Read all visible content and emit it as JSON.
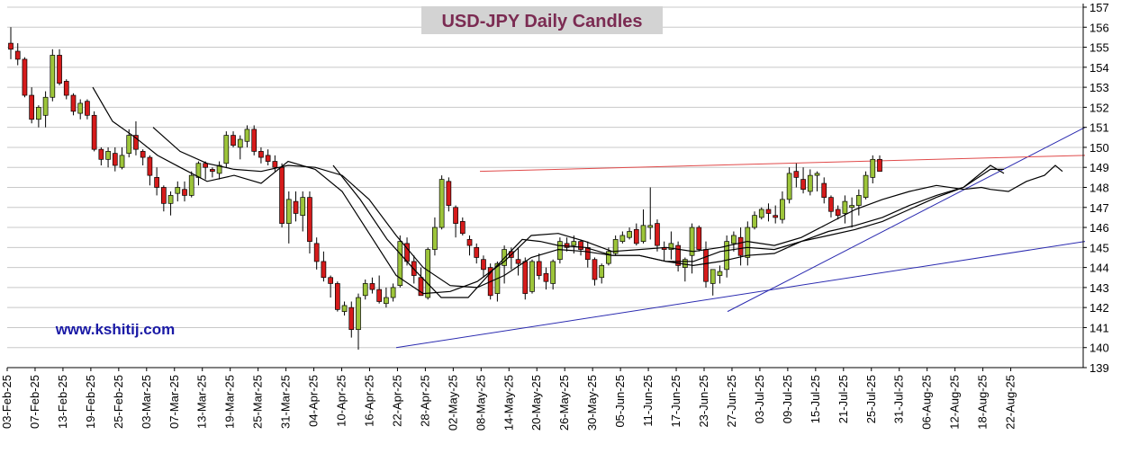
{
  "chart_data": {
    "type": "candlestick",
    "title": "USD-JPY Daily Candles",
    "watermark": "www.kshitij.com",
    "ylim": [
      139,
      157
    ],
    "y_ticks": [
      139,
      140,
      141,
      142,
      143,
      144,
      145,
      146,
      147,
      148,
      149,
      150,
      151,
      152,
      153,
      154,
      155,
      156,
      157
    ],
    "x_tick_labels": [
      "03-Feb-25",
      "07-Feb-25",
      "13-Feb-25",
      "19-Feb-25",
      "25-Feb-25",
      "03-Mar-25",
      "07-Mar-25",
      "13-Mar-25",
      "19-Mar-25",
      "25-Mar-25",
      "31-Mar-25",
      "04-Apr-25",
      "10-Apr-25",
      "16-Apr-25",
      "22-Apr-25",
      "28-Apr-25",
      "02-May-25",
      "08-May-25",
      "14-May-25",
      "20-May-25",
      "26-May-25",
      "30-May-25",
      "05-Jun-25",
      "11-Jun-25",
      "17-Jun-25",
      "23-Jun-25",
      "27-Jun-25",
      "03-Jul-25",
      "09-Jul-25",
      "15-Jul-25",
      "21-Jul-25",
      "25-Jul-25",
      "31-Jul-25",
      "06-Aug-25",
      "12-Aug-25",
      "18-Aug-25",
      "22-Aug-25"
    ],
    "colors": {
      "up": "#9dc53a",
      "down": "#d61b1b",
      "outline": "#000000",
      "ma": "#000000",
      "trend_blue": "#2b2bb0",
      "trend_red": "#e04a4a",
      "grid": "#c8c8c8",
      "title_bg": "#d3d3d3"
    },
    "candles_ohlc": [
      [
        155.2,
        156.0,
        154.4,
        154.9
      ],
      [
        154.8,
        155.2,
        154.1,
        154.4
      ],
      [
        154.4,
        154.5,
        152.5,
        152.6
      ],
      [
        152.6,
        153.0,
        151.2,
        151.4
      ],
      [
        151.4,
        152.1,
        151.0,
        152.0
      ],
      [
        151.6,
        152.8,
        151.0,
        152.5
      ],
      [
        152.5,
        154.9,
        152.3,
        154.6
      ],
      [
        154.6,
        154.9,
        153.1,
        153.2
      ],
      [
        153.3,
        153.4,
        152.4,
        152.6
      ],
      [
        152.6,
        152.7,
        151.6,
        151.8
      ],
      [
        151.7,
        152.4,
        151.4,
        152.2
      ],
      [
        152.3,
        152.4,
        151.4,
        151.6
      ],
      [
        151.6,
        151.8,
        149.8,
        149.9
      ],
      [
        149.9,
        150.0,
        149.1,
        149.4
      ],
      [
        149.4,
        150.0,
        149.0,
        149.8
      ],
      [
        149.7,
        150.0,
        148.8,
        149.1
      ],
      [
        149.0,
        150.0,
        148.9,
        149.6
      ],
      [
        149.7,
        150.9,
        149.5,
        150.6
      ],
      [
        150.6,
        151.3,
        149.6,
        149.9
      ],
      [
        149.8,
        149.9,
        149.1,
        149.5
      ],
      [
        149.5,
        149.6,
        148.1,
        148.6
      ],
      [
        148.5,
        149.0,
        147.6,
        148.0
      ],
      [
        148.0,
        148.1,
        146.8,
        147.2
      ],
      [
        147.2,
        147.8,
        146.6,
        147.6
      ],
      [
        147.7,
        148.3,
        147.3,
        148.0
      ],
      [
        147.9,
        148.3,
        147.3,
        147.6
      ],
      [
        147.6,
        148.8,
        147.5,
        148.6
      ],
      [
        148.5,
        149.3,
        148.1,
        149.2
      ],
      [
        149.2,
        149.3,
        148.4,
        149.0
      ],
      [
        148.9,
        149.0,
        148.5,
        148.8
      ],
      [
        148.7,
        149.3,
        148.4,
        149.1
      ],
      [
        149.2,
        150.8,
        149.0,
        150.6
      ],
      [
        150.6,
        150.8,
        150.0,
        150.1
      ],
      [
        150.0,
        150.6,
        149.4,
        150.4
      ],
      [
        150.3,
        151.1,
        150.0,
        150.9
      ],
      [
        150.9,
        151.1,
        149.6,
        149.8
      ],
      [
        149.8,
        150.0,
        149.2,
        149.5
      ],
      [
        149.6,
        149.9,
        149.1,
        149.3
      ],
      [
        149.3,
        149.6,
        148.8,
        149.0
      ],
      [
        149.0,
        149.2,
        146.0,
        146.2
      ],
      [
        146.2,
        147.8,
        145.2,
        147.4
      ],
      [
        147.3,
        147.8,
        146.3,
        146.7
      ],
      [
        146.6,
        147.8,
        145.8,
        147.5
      ],
      [
        147.5,
        147.8,
        144.7,
        145.3
      ],
      [
        145.2,
        145.5,
        143.9,
        144.3
      ],
      [
        144.3,
        144.8,
        143.3,
        143.5
      ],
      [
        143.5,
        143.6,
        142.5,
        143.2
      ],
      [
        143.2,
        143.3,
        141.8,
        141.9
      ],
      [
        141.8,
        142.3,
        141.6,
        142.1
      ],
      [
        142.0,
        142.3,
        140.5,
        140.9
      ],
      [
        140.9,
        142.7,
        139.9,
        142.5
      ],
      [
        142.6,
        143.4,
        142.4,
        143.2
      ],
      [
        143.2,
        143.5,
        142.7,
        142.9
      ],
      [
        142.9,
        143.6,
        142.2,
        142.3
      ],
      [
        142.2,
        143.0,
        142.0,
        142.5
      ],
      [
        142.5,
        143.2,
        142.3,
        143.0
      ],
      [
        143.1,
        145.6,
        143.0,
        145.3
      ],
      [
        145.2,
        145.5,
        144.1,
        144.3
      ],
      [
        144.3,
        144.6,
        143.2,
        143.6
      ],
      [
        143.5,
        144.0,
        142.8,
        142.6
      ],
      [
        142.5,
        145.0,
        142.4,
        144.9
      ],
      [
        144.9,
        146.5,
        144.6,
        146.0
      ],
      [
        146.0,
        148.6,
        145.9,
        148.4
      ],
      [
        148.3,
        148.5,
        146.8,
        147.1
      ],
      [
        147.0,
        147.1,
        145.5,
        146.2
      ],
      [
        146.3,
        146.5,
        145.6,
        145.7
      ],
      [
        145.4,
        145.6,
        144.6,
        145.1
      ],
      [
        145.0,
        145.2,
        144.2,
        144.5
      ],
      [
        144.4,
        144.6,
        143.5,
        143.9
      ],
      [
        144.0,
        144.2,
        142.4,
        142.6
      ],
      [
        142.7,
        144.3,
        142.3,
        144.2
      ],
      [
        144.1,
        145.1,
        143.2,
        144.9
      ],
      [
        144.8,
        145.0,
        143.9,
        144.5
      ],
      [
        144.4,
        145.0,
        143.6,
        144.2
      ],
      [
        144.3,
        144.5,
        142.4,
        142.7
      ],
      [
        142.8,
        144.4,
        142.7,
        144.3
      ],
      [
        144.3,
        144.7,
        143.4,
        143.6
      ],
      [
        143.7,
        144.0,
        142.9,
        143.3
      ],
      [
        143.2,
        144.4,
        142.9,
        144.3
      ],
      [
        144.4,
        145.5,
        144.2,
        145.3
      ],
      [
        145.2,
        145.5,
        144.8,
        145.0
      ],
      [
        145.1,
        145.6,
        144.7,
        145.3
      ],
      [
        145.3,
        145.4,
        144.6,
        144.9
      ],
      [
        145.0,
        145.3,
        144.0,
        144.4
      ],
      [
        144.4,
        144.5,
        143.1,
        143.4
      ],
      [
        143.5,
        144.2,
        143.2,
        144.1
      ],
      [
        144.2,
        145.0,
        144.1,
        144.8
      ],
      [
        144.7,
        145.6,
        144.6,
        145.4
      ],
      [
        145.3,
        145.8,
        145.2,
        145.6
      ],
      [
        145.5,
        146.0,
        145.4,
        145.8
      ],
      [
        145.9,
        146.2,
        145.1,
        145.2
      ],
      [
        145.3,
        146.9,
        145.2,
        146.1
      ],
      [
        146.0,
        148.0,
        145.4,
        146.1
      ],
      [
        146.2,
        146.4,
        144.8,
        145.1
      ],
      [
        145.0,
        145.3,
        144.3,
        144.9
      ],
      [
        144.9,
        145.8,
        144.4,
        145.2
      ],
      [
        145.1,
        145.3,
        143.8,
        144.1
      ],
      [
        144.0,
        144.5,
        143.3,
        144.4
      ],
      [
        144.6,
        146.2,
        143.7,
        146.0
      ],
      [
        146.0,
        146.1,
        144.8,
        144.9
      ],
      [
        144.9,
        145.3,
        143.0,
        143.3
      ],
      [
        143.2,
        143.9,
        142.6,
        143.9
      ],
      [
        143.6,
        144.1,
        143.2,
        143.8
      ],
      [
        143.9,
        145.6,
        143.5,
        145.3
      ],
      [
        145.2,
        145.8,
        144.8,
        145.6
      ],
      [
        145.5,
        146.0,
        144.1,
        144.6
      ],
      [
        144.5,
        146.3,
        144.1,
        146.0
      ],
      [
        146.0,
        146.8,
        145.9,
        146.6
      ],
      [
        146.5,
        147.0,
        146.4,
        146.9
      ],
      [
        146.9,
        147.2,
        146.3,
        146.7
      ],
      [
        146.6,
        147.1,
        146.2,
        146.5
      ],
      [
        146.4,
        147.8,
        146.2,
        147.4
      ],
      [
        147.4,
        149.0,
        147.2,
        148.7
      ],
      [
        148.8,
        149.2,
        148.0,
        148.5
      ],
      [
        148.4,
        149.0,
        147.7,
        147.9
      ],
      [
        147.8,
        148.9,
        147.6,
        148.6
      ],
      [
        148.6,
        148.8,
        147.8,
        148.7
      ],
      [
        148.2,
        148.5,
        147.2,
        147.5
      ],
      [
        147.5,
        147.6,
        146.5,
        146.8
      ],
      [
        146.9,
        147.1,
        146.4,
        146.6
      ],
      [
        146.7,
        147.6,
        146.2,
        147.3
      ],
      [
        147.0,
        147.5,
        146.0,
        147.1
      ],
      [
        147.1,
        147.9,
        146.6,
        147.6
      ],
      [
        147.5,
        148.8,
        147.4,
        148.6
      ],
      [
        148.5,
        149.6,
        148.2,
        149.4
      ],
      [
        149.4,
        149.6,
        148.8,
        148.8
      ]
    ],
    "moving_averages": [
      {
        "points": [
          [
            103,
            153.0
          ],
          [
            125,
            151.3
          ],
          [
            150,
            150.5
          ],
          [
            175,
            149.6
          ],
          [
            200,
            149.0
          ],
          [
            230,
            148.3
          ],
          [
            260,
            148.6
          ],
          [
            290,
            148.2
          ],
          [
            320,
            149.3
          ],
          [
            350,
            148.9
          ],
          [
            380,
            147.8
          ],
          [
            410,
            145.7
          ],
          [
            440,
            143.6
          ],
          [
            470,
            142.7
          ],
          [
            500,
            142.8
          ],
          [
            530,
            143.3
          ],
          [
            560,
            144.3
          ],
          [
            590,
            145.6
          ],
          [
            620,
            145.7
          ],
          [
            650,
            145.3
          ],
          [
            680,
            144.8
          ],
          [
            710,
            144.9
          ],
          [
            740,
            145.0
          ],
          [
            770,
            144.8
          ],
          [
            800,
            145.0
          ],
          [
            830,
            145.3
          ],
          [
            860,
            145.1
          ],
          [
            890,
            145.5
          ],
          [
            920,
            146.2
          ],
          [
            950,
            146.9
          ],
          [
            980,
            147.4
          ],
          [
            1010,
            147.8
          ],
          [
            1040,
            148.1
          ],
          [
            1070,
            147.9
          ],
          [
            1090,
            148.0
          ],
          [
            1100,
            147.9
          ],
          [
            1120,
            147.8
          ],
          [
            1140,
            148.3
          ],
          [
            1160,
            148.6
          ],
          [
            1172,
            149.1
          ],
          [
            1180,
            148.8
          ]
        ]
      },
      {
        "points": [
          [
            170,
            151.0
          ],
          [
            200,
            149.8
          ],
          [
            230,
            149.2
          ],
          [
            260,
            148.9
          ],
          [
            290,
            148.8
          ],
          [
            320,
            149.1
          ],
          [
            350,
            149.0
          ],
          [
            380,
            148.6
          ],
          [
            410,
            147.4
          ],
          [
            440,
            145.6
          ],
          [
            470,
            144.0
          ],
          [
            500,
            143.1
          ],
          [
            530,
            143.0
          ],
          [
            560,
            143.6
          ],
          [
            590,
            144.5
          ],
          [
            620,
            144.9
          ],
          [
            650,
            144.8
          ],
          [
            680,
            144.6
          ],
          [
            710,
            144.6
          ],
          [
            740,
            144.3
          ],
          [
            770,
            144.1
          ],
          [
            800,
            144.3
          ],
          [
            830,
            144.6
          ],
          [
            860,
            144.7
          ],
          [
            890,
            145.3
          ],
          [
            920,
            145.6
          ],
          [
            950,
            145.9
          ],
          [
            980,
            146.3
          ],
          [
            1010,
            146.9
          ],
          [
            1040,
            147.5
          ],
          [
            1070,
            148.0
          ],
          [
            1100,
            149.1
          ],
          [
            1115,
            148.7
          ]
        ]
      },
      {
        "points": [
          [
            370,
            149.1
          ],
          [
            400,
            147.4
          ],
          [
            430,
            145.4
          ],
          [
            460,
            143.9
          ],
          [
            490,
            142.5
          ],
          [
            520,
            142.5
          ],
          [
            550,
            144.0
          ],
          [
            580,
            145.4
          ],
          [
            600,
            145.3
          ],
          [
            620,
            145.1
          ],
          [
            650,
            145.0
          ],
          [
            680,
            144.6
          ],
          [
            710,
            144.6
          ],
          [
            740,
            144.3
          ],
          [
            770,
            144.3
          ],
          [
            800,
            144.8
          ],
          [
            830,
            145.0
          ],
          [
            860,
            144.9
          ],
          [
            890,
            145.3
          ],
          [
            920,
            145.8
          ],
          [
            950,
            146.1
          ],
          [
            980,
            146.5
          ],
          [
            1010,
            147.1
          ],
          [
            1040,
            147.6
          ],
          [
            1070,
            148.0
          ],
          [
            1100,
            148.9
          ],
          [
            1115,
            148.9
          ]
        ]
      }
    ],
    "trend_lines": [
      {
        "color": "blue",
        "from": [
          440,
          140.0
        ],
        "to": [
          1205,
          145.3
        ]
      },
      {
        "color": "blue",
        "from": [
          808,
          141.8
        ],
        "to": [
          1205,
          151.0
        ]
      },
      {
        "color": "red",
        "from": [
          533,
          148.8
        ],
        "to": [
          1205,
          149.6
        ]
      }
    ]
  }
}
